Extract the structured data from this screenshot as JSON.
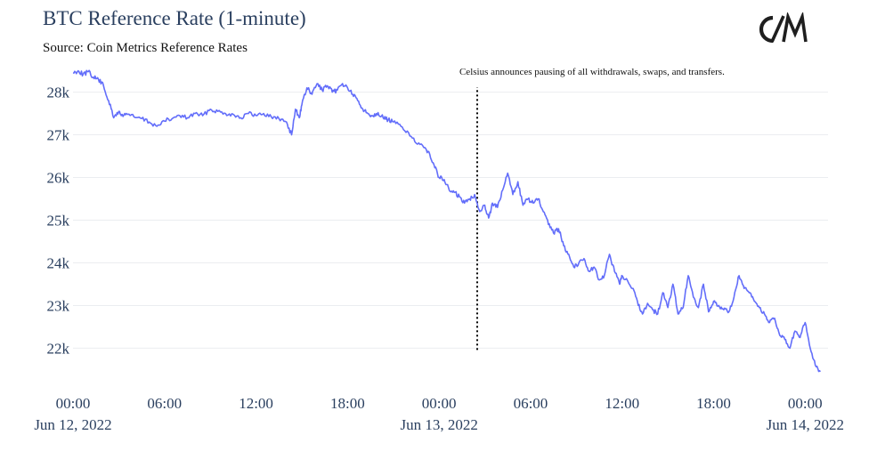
{
  "colors": {
    "line": "#636efa",
    "grid": "#ebedf0",
    "text": "#2a3f5f",
    "annotation_line": "#000000"
  },
  "logo": {
    "text": "C/M",
    "icon": "coin-metrics-logo-icon"
  },
  "chart_data": {
    "type": "line",
    "title": "BTC Reference Rate (1-minute)",
    "subtitle": "Source: Coin Metrics Reference Rates",
    "xlabel": "",
    "ylabel": "",
    "xlim": [
      "2022-06-12 00:00",
      "2022-06-14 01:30"
    ],
    "ylim": [
      21300,
      28700
    ],
    "grid": true,
    "x_ticks": [
      {
        "x": "2022-06-12 00:00",
        "label": "00:00",
        "sublabel": "Jun 12, 2022"
      },
      {
        "x": "2022-06-12 06:00",
        "label": "06:00",
        "sublabel": ""
      },
      {
        "x": "2022-06-12 12:00",
        "label": "12:00",
        "sublabel": ""
      },
      {
        "x": "2022-06-12 18:00",
        "label": "18:00",
        "sublabel": ""
      },
      {
        "x": "2022-06-13 00:00",
        "label": "00:00",
        "sublabel": "Jun 13, 2022"
      },
      {
        "x": "2022-06-13 06:00",
        "label": "06:00",
        "sublabel": ""
      },
      {
        "x": "2022-06-13 12:00",
        "label": "12:00",
        "sublabel": ""
      },
      {
        "x": "2022-06-13 18:00",
        "label": "18:00",
        "sublabel": ""
      },
      {
        "x": "2022-06-14 00:00",
        "label": "00:00",
        "sublabel": "Jun 14, 2022"
      }
    ],
    "y_ticks": [
      {
        "y": 22000,
        "label": "22k"
      },
      {
        "y": 23000,
        "label": "23k"
      },
      {
        "y": 24000,
        "label": "24k"
      },
      {
        "y": 25000,
        "label": "25k"
      },
      {
        "y": 26000,
        "label": "26k"
      },
      {
        "y": 27000,
        "label": "27k"
      },
      {
        "y": 28000,
        "label": "28k"
      }
    ],
    "annotation": {
      "x": "2022-06-13 02:30",
      "y_from": 22000,
      "y_to": 28200,
      "text": "Celsius announces pausing of all withdrawals, swaps, and transfers."
    },
    "series": [
      {
        "x": [
          "2022-06-12 00:00",
          "2022-06-12 00:20",
          "2022-06-12 00:40",
          "2022-06-12 01:00",
          "2022-06-12 01:20",
          "2022-06-12 01:40",
          "2022-06-12 02:00",
          "2022-06-12 02:20",
          "2022-06-12 02:40",
          "2022-06-12 03:00",
          "2022-06-12 03:10",
          "2022-06-12 03:30",
          "2022-06-12 04:00",
          "2022-06-12 04:30",
          "2022-06-12 05:00",
          "2022-06-12 05:30",
          "2022-06-12 06:00",
          "2022-06-12 06:30",
          "2022-06-12 07:00",
          "2022-06-12 07:30",
          "2022-06-12 08:00",
          "2022-06-12 08:30",
          "2022-06-12 09:00",
          "2022-06-12 09:30",
          "2022-06-12 10:00",
          "2022-06-12 10:30",
          "2022-06-12 11:00",
          "2022-06-12 11:30",
          "2022-06-12 12:00",
          "2022-06-12 12:30",
          "2022-06-12 13:00",
          "2022-06-12 13:30",
          "2022-06-12 14:00",
          "2022-06-12 14:20",
          "2022-06-12 14:35",
          "2022-06-12 14:50",
          "2022-06-12 15:00",
          "2022-06-12 15:20",
          "2022-06-12 15:40",
          "2022-06-12 16:00",
          "2022-06-12 16:20",
          "2022-06-12 16:40",
          "2022-06-12 17:00",
          "2022-06-12 17:20",
          "2022-06-12 17:40",
          "2022-06-12 18:00",
          "2022-06-12 18:20",
          "2022-06-12 18:40",
          "2022-06-12 19:00",
          "2022-06-12 19:20",
          "2022-06-12 19:40",
          "2022-06-12 20:00",
          "2022-06-12 20:20",
          "2022-06-12 20:40",
          "2022-06-12 21:00",
          "2022-06-12 21:30",
          "2022-06-12 22:00",
          "2022-06-12 22:30",
          "2022-06-12 23:00",
          "2022-06-12 23:20",
          "2022-06-12 23:40",
          "2022-06-13 00:00",
          "2022-06-13 00:20",
          "2022-06-13 00:40",
          "2022-06-13 01:00",
          "2022-06-13 01:20",
          "2022-06-13 01:40",
          "2022-06-13 02:00",
          "2022-06-13 02:20",
          "2022-06-13 02:40",
          "2022-06-13 03:00",
          "2022-06-13 03:15",
          "2022-06-13 03:30",
          "2022-06-13 03:50",
          "2022-06-13 04:10",
          "2022-06-13 04:30",
          "2022-06-13 04:50",
          "2022-06-13 05:10",
          "2022-06-13 05:30",
          "2022-06-13 05:50",
          "2022-06-13 06:10",
          "2022-06-13 06:30",
          "2022-06-13 06:50",
          "2022-06-13 07:10",
          "2022-06-13 07:30",
          "2022-06-13 07:50",
          "2022-06-13 08:10",
          "2022-06-13 08:30",
          "2022-06-13 08:50",
          "2022-06-13 09:10",
          "2022-06-13 09:30",
          "2022-06-13 09:50",
          "2022-06-13 10:10",
          "2022-06-13 10:30",
          "2022-06-13 10:50",
          "2022-06-13 11:10",
          "2022-06-13 11:30",
          "2022-06-13 11:50",
          "2022-06-13 12:00",
          "2022-06-13 12:20",
          "2022-06-13 12:40",
          "2022-06-13 13:00",
          "2022-06-13 13:20",
          "2022-06-13 13:40",
          "2022-06-13 14:00",
          "2022-06-13 14:20",
          "2022-06-13 14:40",
          "2022-06-13 15:00",
          "2022-06-13 15:20",
          "2022-06-13 15:40",
          "2022-06-13 16:00",
          "2022-06-13 16:20",
          "2022-06-13 16:40",
          "2022-06-13 17:00",
          "2022-06-13 17:20",
          "2022-06-13 17:40",
          "2022-06-13 18:00",
          "2022-06-13 18:20",
          "2022-06-13 18:40",
          "2022-06-13 19:00",
          "2022-06-13 19:20",
          "2022-06-13 19:40",
          "2022-06-13 20:00",
          "2022-06-13 20:20",
          "2022-06-13 20:40",
          "2022-06-13 21:00",
          "2022-06-13 21:20",
          "2022-06-13 21:40",
          "2022-06-13 22:00",
          "2022-06-13 22:20",
          "2022-06-13 22:40",
          "2022-06-13 23:00",
          "2022-06-13 23:20",
          "2022-06-13 23:40",
          "2022-06-14 00:00",
          "2022-06-14 00:20",
          "2022-06-14 00:40",
          "2022-06-14 01:00"
        ],
        "values": [
          28450,
          28500,
          28420,
          28480,
          28350,
          28300,
          28150,
          27800,
          27400,
          27550,
          27450,
          27500,
          27420,
          27380,
          27300,
          27200,
          27320,
          27380,
          27450,
          27400,
          27500,
          27450,
          27600,
          27550,
          27500,
          27480,
          27400,
          27500,
          27450,
          27500,
          27420,
          27380,
          27300,
          27000,
          27600,
          27400,
          27700,
          28100,
          27950,
          28200,
          28050,
          28150,
          28000,
          28050,
          28200,
          28100,
          27950,
          27800,
          27600,
          27500,
          27450,
          27520,
          27400,
          27350,
          27300,
          27200,
          27050,
          26800,
          26700,
          26600,
          26300,
          26000,
          25950,
          25700,
          25650,
          25550,
          25400,
          25500,
          25600,
          25200,
          25350,
          25050,
          25400,
          25300,
          25700,
          26100,
          25600,
          25900,
          25350,
          25500,
          25400,
          25500,
          25200,
          24900,
          24700,
          24800,
          24400,
          24200,
          23900,
          24000,
          24100,
          23800,
          23900,
          23600,
          23700,
          24200,
          23800,
          23500,
          23700,
          23600,
          23400,
          23100,
          22800,
          23050,
          22900,
          22800,
          23300,
          22950,
          23500,
          22800,
          22950,
          23700,
          23200,
          22950,
          23500,
          22850,
          23100,
          23000,
          22900,
          22850,
          23200,
          23700,
          23400,
          23300,
          23100,
          22950,
          22800,
          22600,
          22700,
          22300,
          22200,
          22000,
          22400,
          22250,
          22600,
          22000,
          21600,
          21450
        ]
      }
    ]
  }
}
